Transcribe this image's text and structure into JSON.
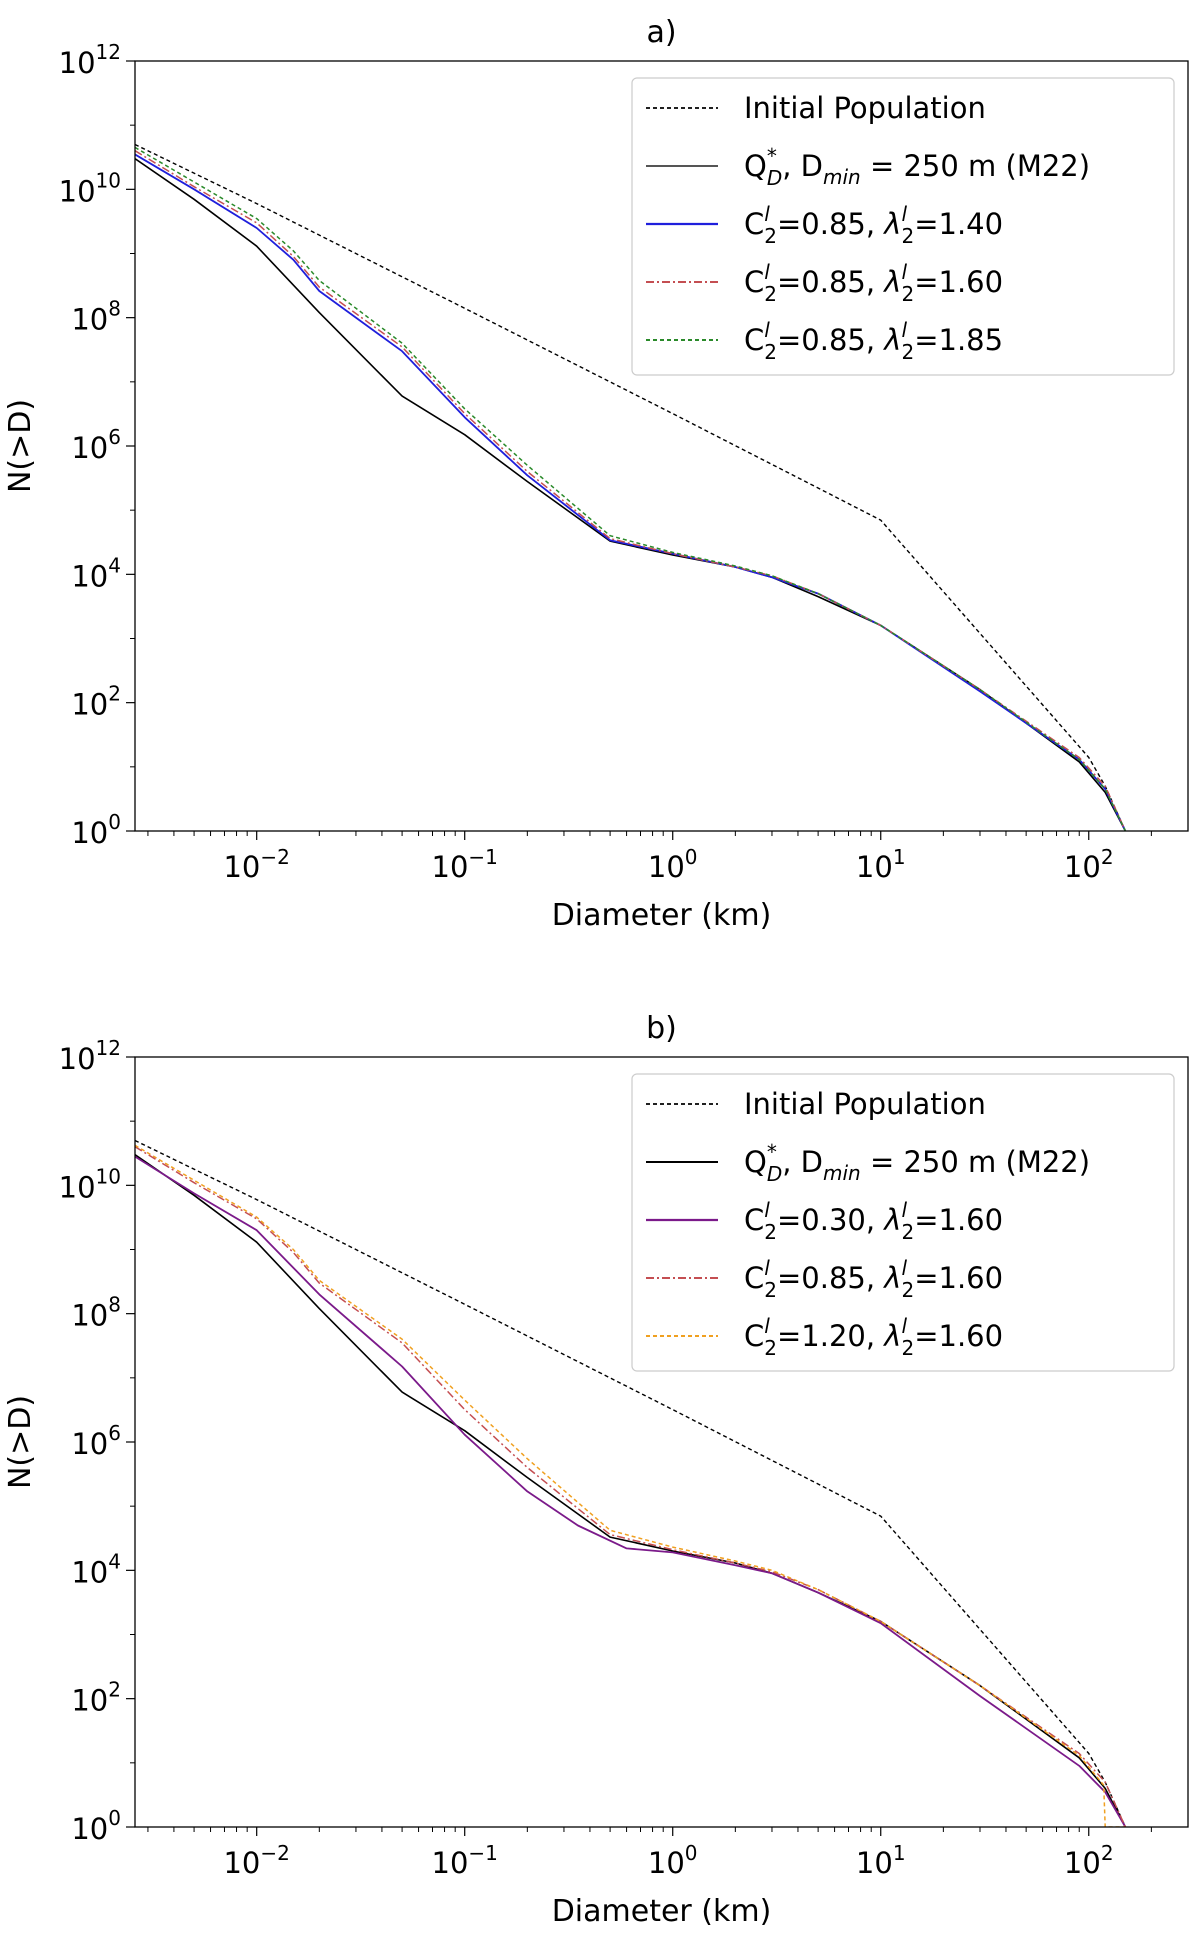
{
  "chart_data": [
    {
      "type": "line",
      "title": "a)",
      "xlabel": "Diameter (km)",
      "ylabel": "N(>D)",
      "xscale": "log",
      "yscale": "log",
      "xlim": [
        0.0026,
        300
      ],
      "ylim": [
        1,
        1000000000000.0
      ],
      "x_ticks": [
        {
          "value": 0.01,
          "base": "10",
          "exp": "−2"
        },
        {
          "value": 0.1,
          "base": "10",
          "exp": "−1"
        },
        {
          "value": 1,
          "base": "10",
          "exp": "0"
        },
        {
          "value": 10,
          "base": "10",
          "exp": "1"
        },
        {
          "value": 100,
          "base": "10",
          "exp": "2"
        }
      ],
      "y_ticks": [
        {
          "value": 1,
          "base": "10",
          "exp": "0"
        },
        {
          "value": 100,
          "base": "10",
          "exp": "2"
        },
        {
          "value": 10000,
          "base": "10",
          "exp": "4"
        },
        {
          "value": 1000000,
          "base": "10",
          "exp": "6"
        },
        {
          "value": 100000000,
          "base": "10",
          "exp": "8"
        },
        {
          "value": 10000000000,
          "base": "10",
          "exp": "10"
        },
        {
          "value": 1000000000000,
          "base": "10",
          "exp": "12"
        }
      ],
      "grid": false,
      "legend_position": "top-right",
      "series": [
        {
          "label": [
            "Initial Population"
          ],
          "color": "#000000",
          "dash": "4,3",
          "width": 1.4,
          "x": [
            0.0026,
            0.01,
            0.1,
            1,
            10,
            100,
            120,
            150
          ],
          "y": [
            50000000000.0,
            6000000000.0,
            140000000.0,
            3200000.0,
            70000.0,
            14,
            5,
            1
          ]
        },
        {
          "label": [
            "Q",
            {
              "sup": "*",
              "sub": "D"
            },
            ", D",
            {
              "sub": "min"
            },
            " = 250 m (M22)"
          ],
          "color": "#000000",
          "dash": "",
          "width": 1.6,
          "legend_color": "#555555",
          "x": [
            0.0026,
            0.005,
            0.01,
            0.02,
            0.05,
            0.1,
            0.2,
            0.5,
            1,
            2,
            3,
            5,
            10,
            30,
            90,
            120,
            150
          ],
          "y": [
            30000000000.0,
            7000000000.0,
            1300000000.0,
            120000000.0,
            6000000.0,
            1500000.0,
            280000.0,
            33000.0,
            20000.0,
            13000.0,
            9000.0,
            4500.0,
            1600.0,
            160.0,
            12,
            4,
            1
          ]
        },
        {
          "label": [
            "C",
            {
              "sup": "l",
              "sub": "2"
            },
            "=0.85, ",
            {
              "lambda": true
            },
            {
              "sup": "l",
              "sub": "2"
            },
            "=1.40"
          ],
          "color": "#1f1fdc",
          "dash": "",
          "width": 1.8,
          "x": [
            0.0026,
            0.005,
            0.01,
            0.015,
            0.02,
            0.05,
            0.1,
            0.2,
            0.5,
            1,
            2,
            3,
            5,
            10,
            30,
            90,
            120,
            150
          ],
          "y": [
            35000000000.0,
            10000000000.0,
            2500000000.0,
            800000000.0,
            260000000.0,
            30000000.0,
            2800000.0,
            350000.0,
            34000.0,
            21000.0,
            13000.0,
            9000.0,
            5000.0,
            1600.0,
            150.0,
            13,
            4.5,
            1
          ]
        },
        {
          "label": [
            "C",
            {
              "sup": "l",
              "sub": "2"
            },
            "=0.85, ",
            {
              "lambda": true
            },
            {
              "sup": "l",
              "sub": "2"
            },
            "=1.60"
          ],
          "color": "#c44e52",
          "dash": "8,3,2,3",
          "width": 1.5,
          "x": [
            0.0026,
            0.005,
            0.01,
            0.015,
            0.02,
            0.05,
            0.1,
            0.2,
            0.5,
            1,
            2,
            3,
            5,
            10,
            30,
            90,
            120,
            150
          ],
          "y": [
            40000000000.0,
            11000000000.0,
            3000000000.0,
            900000000.0,
            300000000.0,
            35000000.0,
            3200000.0,
            400000.0,
            36000.0,
            21000.0,
            13000.0,
            9500.0,
            5000.0,
            1600.0,
            160.0,
            14,
            5,
            1
          ]
        },
        {
          "label": [
            "C",
            {
              "sup": "l",
              "sub": "2"
            },
            "=0.85, ",
            {
              "lambda": true
            },
            {
              "sup": "l",
              "sub": "2"
            },
            "=1.85"
          ],
          "color": "#2a8a2a",
          "dash": "4,3",
          "width": 1.5,
          "x": [
            0.0026,
            0.005,
            0.01,
            0.015,
            0.02,
            0.05,
            0.1,
            0.2,
            0.5,
            1,
            2,
            3,
            5,
            10,
            30,
            90,
            120,
            150
          ],
          "y": [
            45000000000.0,
            13000000000.0,
            3500000000.0,
            1100000000.0,
            380000000.0,
            40000000.0,
            3800000.0,
            500000.0,
            40000.0,
            22000.0,
            13500.0,
            9500.0,
            5000.0,
            1600.0,
            160.0,
            13,
            4.5,
            1
          ]
        }
      ]
    },
    {
      "type": "line",
      "title": "b)",
      "xlabel": "Diameter (km)",
      "ylabel": "N(>D)",
      "xscale": "log",
      "yscale": "log",
      "xlim": [
        0.0026,
        300
      ],
      "ylim": [
        1,
        1000000000000.0
      ],
      "x_ticks": [
        {
          "value": 0.01,
          "base": "10",
          "exp": "−2"
        },
        {
          "value": 0.1,
          "base": "10",
          "exp": "−1"
        },
        {
          "value": 1,
          "base": "10",
          "exp": "0"
        },
        {
          "value": 10,
          "base": "10",
          "exp": "1"
        },
        {
          "value": 100,
          "base": "10",
          "exp": "2"
        }
      ],
      "y_ticks": [
        {
          "value": 1,
          "base": "10",
          "exp": "0"
        },
        {
          "value": 100,
          "base": "10",
          "exp": "2"
        },
        {
          "value": 10000,
          "base": "10",
          "exp": "4"
        },
        {
          "value": 1000000,
          "base": "10",
          "exp": "6"
        },
        {
          "value": 100000000,
          "base": "10",
          "exp": "8"
        },
        {
          "value": 10000000000,
          "base": "10",
          "exp": "10"
        },
        {
          "value": 1000000000000,
          "base": "10",
          "exp": "12"
        }
      ],
      "grid": false,
      "legend_position": "top-right",
      "series": [
        {
          "label": [
            "Initial Population"
          ],
          "color": "#000000",
          "dash": "4,3",
          "width": 1.4,
          "x": [
            0.0026,
            0.01,
            0.1,
            1,
            10,
            100,
            120,
            150
          ],
          "y": [
            50000000000.0,
            6000000000.0,
            140000000.0,
            3200000.0,
            70000.0,
            14,
            5,
            1
          ]
        },
        {
          "label": [
            "Q",
            {
              "sup": "*",
              "sub": "D"
            },
            ", D",
            {
              "sub": "min"
            },
            " = 250 m (M22)"
          ],
          "color": "#000000",
          "dash": "",
          "width": 1.6,
          "x": [
            0.0026,
            0.005,
            0.01,
            0.02,
            0.05,
            0.1,
            0.2,
            0.5,
            1,
            2,
            3,
            5,
            10,
            30,
            90,
            120,
            150
          ],
          "y": [
            30000000000.0,
            7000000000.0,
            1300000000.0,
            120000000.0,
            6000000.0,
            1500000.0,
            280000.0,
            33000.0,
            20000.0,
            13000.0,
            9000.0,
            4500.0,
            1600.0,
            160.0,
            12,
            4,
            1
          ]
        },
        {
          "label": [
            "C",
            {
              "sup": "l",
              "sub": "2"
            },
            "=0.30, ",
            {
              "lambda": true
            },
            {
              "sup": "l",
              "sub": "2"
            },
            "=1.60"
          ],
          "color": "#7b1a8a",
          "dash": "",
          "width": 1.8,
          "x": [
            0.0026,
            0.005,
            0.01,
            0.02,
            0.05,
            0.1,
            0.2,
            0.35,
            0.6,
            1,
            2,
            3,
            5,
            10,
            30,
            90,
            120,
            150
          ],
          "y": [
            28000000000.0,
            7500000000.0,
            2000000000.0,
            200000000.0,
            15000000.0,
            1300000.0,
            170000.0,
            50000.0,
            22000.0,
            19000.0,
            12000.0,
            9000.0,
            4500.0,
            1500.0,
            110.0,
            9,
            3.5,
            1
          ]
        },
        {
          "label": [
            "C",
            {
              "sup": "l",
              "sub": "2"
            },
            "=0.85, ",
            {
              "lambda": true
            },
            {
              "sup": "l",
              "sub": "2"
            },
            "=1.60"
          ],
          "color": "#c44e52",
          "dash": "8,3,2,3",
          "width": 1.5,
          "x": [
            0.0026,
            0.005,
            0.01,
            0.015,
            0.02,
            0.05,
            0.1,
            0.2,
            0.5,
            1,
            2,
            3,
            5,
            10,
            30,
            90,
            120,
            150
          ],
          "y": [
            40000000000.0,
            11000000000.0,
            3000000000.0,
            900000000.0,
            300000000.0,
            35000000.0,
            3200000.0,
            400000.0,
            36000.0,
            21000.0,
            13000.0,
            9500.0,
            5000.0,
            1600.0,
            160.0,
            14,
            5,
            1
          ]
        },
        {
          "label": [
            "C",
            {
              "sup": "l",
              "sub": "2"
            },
            "=1.20, ",
            {
              "lambda": true
            },
            {
              "sup": "l",
              "sub": "2"
            },
            "=1.60"
          ],
          "color": "#f0a020",
          "dash": "4,3",
          "width": 1.5,
          "x": [
            0.0026,
            0.005,
            0.01,
            0.015,
            0.02,
            0.05,
            0.1,
            0.2,
            0.5,
            1,
            2,
            3,
            5,
            10,
            30,
            90,
            118,
            120,
            150
          ],
          "y": [
            42000000000.0,
            12000000000.0,
            3200000000.0,
            1000000000.0,
            330000000.0,
            40000000.0,
            4500000.0,
            550000.0,
            42000.0,
            23000.0,
            14000.0,
            10000.0,
            5000.0,
            1600.0,
            160.0,
            13,
            4.5,
            1,
            1
          ]
        }
      ]
    }
  ]
}
